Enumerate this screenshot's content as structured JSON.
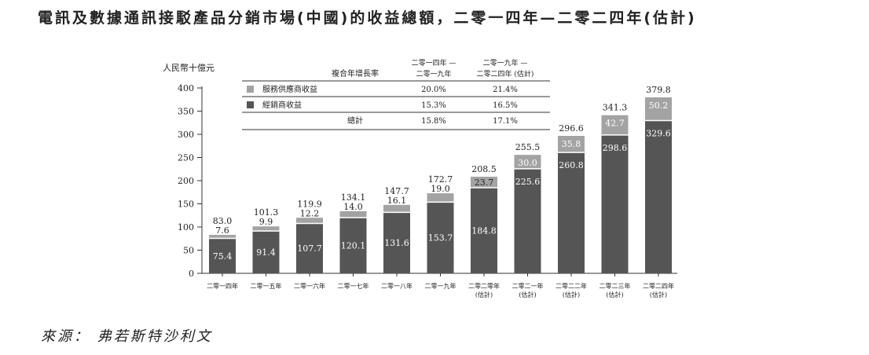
{
  "title": "電訊及數據通訊接駁產品分銷市場(中國)的收益總額，二零一四年—二零二四年(估計)",
  "source": "來源： 弗若斯特沙利文",
  "chart_data": {
    "type": "bar",
    "stacked": true,
    "ylabel": "人民幣十億元",
    "ylim": [
      0,
      400
    ],
    "yticks": [
      0,
      50,
      100,
      150,
      200,
      250,
      300,
      350,
      400
    ],
    "categories": [
      [
        "二零一四年"
      ],
      [
        "二零一五年"
      ],
      [
        "二零一六年"
      ],
      [
        "二零一七年"
      ],
      [
        "二零一八年"
      ],
      [
        "二零一九年"
      ],
      [
        "二零二零年",
        "(估計)"
      ],
      [
        "二零二一年",
        "(估計)"
      ],
      [
        "二零二二年",
        "(估計)"
      ],
      [
        "二零二三年",
        "(估計)"
      ],
      [
        "二零二四年",
        "(估計)"
      ]
    ],
    "series": [
      {
        "name": "經銷商收益",
        "color": "#555555",
        "values": [
          75.4,
          91.4,
          107.7,
          120.1,
          131.6,
          153.7,
          184.8,
          225.6,
          260.8,
          298.6,
          329.6
        ],
        "labels": [
          "75.4",
          "91.4",
          "107.7",
          "120.1",
          "131.6",
          "153.7",
          "184.8",
          "225.6",
          "260.8",
          "298.6",
          "329.6"
        ]
      },
      {
        "name": "服務供應商收益",
        "color": "#a3a3a3",
        "values": [
          7.6,
          9.9,
          12.2,
          14.0,
          16.1,
          19.0,
          23.7,
          30.0,
          35.8,
          42.7,
          50.2
        ],
        "labels": [
          "7.6",
          "9.9",
          "12.2",
          "14.0",
          "16.1",
          "19.0",
          "23.7",
          "30.0",
          "35.8",
          "42.7",
          "50.2"
        ]
      }
    ],
    "totals": [
      83.0,
      101.3,
      119.9,
      134.1,
      147.7,
      172.7,
      208.5,
      255.5,
      296.6,
      341.3,
      379.8
    ],
    "total_labels": [
      "83.0",
      "101.3",
      "119.9",
      "134.1",
      "147.7",
      "172.7",
      "208.5",
      "255.5",
      "296.6",
      "341.3",
      "379.8"
    ],
    "legend_table": {
      "header": "複合年增長率",
      "columns": [
        [
          "二零一四年 —",
          "二零一九年"
        ],
        [
          "二零一九年 —",
          "二零二四年 (估計)"
        ]
      ],
      "rows": [
        {
          "name": "服務供應商收益",
          "values": [
            "20.0%",
            "21.4%"
          ]
        },
        {
          "name": "經銷商收益",
          "values": [
            "15.3%",
            "16.5%"
          ]
        },
        {
          "name": "總計",
          "values": [
            "15.8%",
            "17.1%"
          ]
        }
      ]
    }
  }
}
